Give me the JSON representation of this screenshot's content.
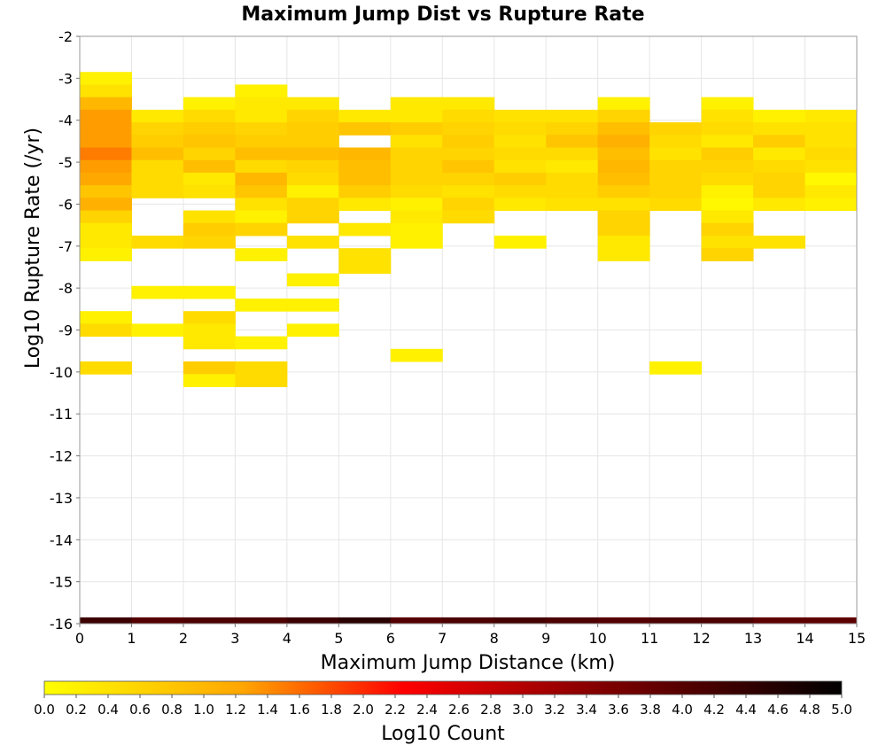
{
  "chart_data": {
    "type": "heatmap",
    "title": "Maximum Jump Dist vs Rupture Rate",
    "xlabel": "Maximum Jump Distance (km)",
    "ylabel": "Log10 Rupture Rate (/yr)",
    "colorbar_label": "Log10 Count",
    "xlim": [
      0,
      15
    ],
    "ylim": [
      -16,
      -2
    ],
    "x_ticks": [
      "0",
      "1",
      "2",
      "3",
      "4",
      "5",
      "6",
      "7",
      "8",
      "9",
      "10",
      "11",
      "12",
      "13",
      "14",
      "15"
    ],
    "y_ticks": [
      "-2",
      "-3",
      "-4",
      "-5",
      "-6",
      "-7",
      "-8",
      "-9",
      "-10",
      "-11",
      "-12",
      "-13",
      "-14",
      "-15",
      "-16"
    ],
    "colorbar_range": [
      0,
      5
    ],
    "colorbar_ticks": [
      "0.0",
      "0.2",
      "0.4",
      "0.6",
      "0.8",
      "1.0",
      "1.2",
      "1.4",
      "1.6",
      "1.8",
      "2.0",
      "2.2",
      "2.4",
      "2.6",
      "2.8",
      "3.0",
      "3.2",
      "3.4",
      "3.6",
      "3.8",
      "4.0",
      "4.2",
      "4.4",
      "4.6",
      "4.8",
      "5.0"
    ],
    "colormap": [
      "#ffff00",
      "#ffa500",
      "#ff0000",
      "#800000",
      "#000000"
    ],
    "bin_width_x": 1,
    "bin_height_y": 0.3,
    "grid": true,
    "cells": [
      [
        0,
        -16,
        4.3
      ],
      [
        1,
        -16,
        4.0
      ],
      [
        2,
        -16,
        4.1
      ],
      [
        3,
        -16,
        4.1
      ],
      [
        4,
        -16,
        4.3
      ],
      [
        5,
        -16,
        4.5
      ],
      [
        6,
        -16,
        4.0
      ],
      [
        7,
        -16,
        4.1
      ],
      [
        8,
        -16,
        4.2
      ],
      [
        9,
        -16,
        4.1
      ],
      [
        10,
        -16,
        4.0
      ],
      [
        11,
        -16,
        4.1
      ],
      [
        12,
        -16,
        4.1
      ],
      [
        13,
        -16,
        3.9
      ],
      [
        14,
        -16,
        3.9
      ],
      [
        0,
        -3.0,
        0.2
      ],
      [
        0,
        -3.3,
        0.4
      ],
      [
        0,
        -3.6,
        1.0
      ],
      [
        0,
        -3.9,
        1.3
      ],
      [
        0,
        -4.2,
        1.3
      ],
      [
        0,
        -4.5,
        1.3
      ],
      [
        0,
        -4.8,
        1.5
      ],
      [
        0,
        -5.1,
        1.3
      ],
      [
        0,
        -5.4,
        1.2
      ],
      [
        0,
        -5.7,
        0.8
      ],
      [
        0,
        -6.0,
        1.1
      ],
      [
        0,
        -6.3,
        0.6
      ],
      [
        0,
        -6.6,
        0.3
      ],
      [
        0,
        -6.9,
        0.3
      ],
      [
        0,
        -7.2,
        0.2
      ],
      [
        0,
        -8.7,
        0.2
      ],
      [
        0,
        -9.0,
        0.5
      ],
      [
        0,
        -9.9,
        0.5
      ],
      [
        1,
        -3.9,
        0.3
      ],
      [
        1,
        -4.2,
        0.6
      ],
      [
        1,
        -4.5,
        0.7
      ],
      [
        1,
        -4.8,
        0.9
      ],
      [
        1,
        -5.1,
        0.5
      ],
      [
        1,
        -5.4,
        0.5
      ],
      [
        1,
        -5.7,
        0.5
      ],
      [
        1,
        -6.9,
        0.5
      ],
      [
        1,
        -8.1,
        0.2
      ],
      [
        1,
        -9.0,
        0.2
      ],
      [
        2,
        -3.6,
        0.2
      ],
      [
        2,
        -3.9,
        0.5
      ],
      [
        2,
        -4.2,
        0.7
      ],
      [
        2,
        -4.5,
        0.8
      ],
      [
        2,
        -4.8,
        0.6
      ],
      [
        2,
        -5.1,
        0.9
      ],
      [
        2,
        -5.4,
        0.3
      ],
      [
        2,
        -5.7,
        0.4
      ],
      [
        2,
        -6.3,
        0.4
      ],
      [
        2,
        -6.6,
        0.7
      ],
      [
        2,
        -6.9,
        0.6
      ],
      [
        2,
        -8.1,
        0.2
      ],
      [
        2,
        -8.7,
        0.5
      ],
      [
        2,
        -9.0,
        0.3
      ],
      [
        2,
        -9.3,
        0.3
      ],
      [
        2,
        -9.9,
        0.7
      ],
      [
        2,
        -10.2,
        0.2
      ],
      [
        3,
        -3.3,
        0.2
      ],
      [
        3,
        -3.6,
        0.3
      ],
      [
        3,
        -3.9,
        0.3
      ],
      [
        3,
        -4.2,
        0.6
      ],
      [
        3,
        -4.5,
        0.7
      ],
      [
        3,
        -4.8,
        0.9
      ],
      [
        3,
        -5.1,
        0.5
      ],
      [
        3,
        -5.4,
        1.0
      ],
      [
        3,
        -5.7,
        0.8
      ],
      [
        3,
        -6.0,
        0.4
      ],
      [
        3,
        -6.3,
        0.2
      ],
      [
        3,
        -6.6,
        0.6
      ],
      [
        3,
        -7.2,
        0.2
      ],
      [
        3,
        -8.4,
        0.2
      ],
      [
        3,
        -9.3,
        0.2
      ],
      [
        3,
        -9.9,
        0.5
      ],
      [
        3,
        -10.2,
        0.5
      ],
      [
        4,
        -3.6,
        0.3
      ],
      [
        4,
        -3.9,
        0.6
      ],
      [
        4,
        -4.2,
        0.7
      ],
      [
        4,
        -4.5,
        0.7
      ],
      [
        4,
        -4.8,
        0.9
      ],
      [
        4,
        -5.1,
        0.6
      ],
      [
        4,
        -5.4,
        0.5
      ],
      [
        4,
        -5.7,
        0.2
      ],
      [
        4,
        -6.0,
        0.6
      ],
      [
        4,
        -6.3,
        0.6
      ],
      [
        4,
        -6.9,
        0.4
      ],
      [
        4,
        -7.8,
        0.2
      ],
      [
        4,
        -8.4,
        0.2
      ],
      [
        4,
        -9.0,
        0.2
      ],
      [
        5,
        -3.9,
        0.3
      ],
      [
        5,
        -4.2,
        0.8
      ],
      [
        5,
        -4.8,
        1.0
      ],
      [
        5,
        -5.1,
        0.9
      ],
      [
        5,
        -5.4,
        0.9
      ],
      [
        5,
        -5.7,
        0.7
      ],
      [
        5,
        -6.0,
        0.3
      ],
      [
        5,
        -6.6,
        0.3
      ],
      [
        5,
        -7.2,
        0.4
      ],
      [
        5,
        -7.5,
        0.4
      ],
      [
        6,
        -3.6,
        0.3
      ],
      [
        6,
        -3.9,
        0.3
      ],
      [
        6,
        -4.2,
        0.7
      ],
      [
        6,
        -4.5,
        0.4
      ],
      [
        6,
        -4.8,
        0.6
      ],
      [
        6,
        -5.1,
        0.6
      ],
      [
        6,
        -5.4,
        0.6
      ],
      [
        6,
        -5.7,
        0.5
      ],
      [
        6,
        -6.0,
        0.2
      ],
      [
        6,
        -6.3,
        0.3
      ],
      [
        6,
        -6.6,
        0.2
      ],
      [
        6,
        -6.9,
        0.2
      ],
      [
        6,
        -9.6,
        0.2
      ],
      [
        7,
        -3.6,
        0.3
      ],
      [
        7,
        -3.9,
        0.5
      ],
      [
        7,
        -4.2,
        0.6
      ],
      [
        7,
        -4.5,
        0.7
      ],
      [
        7,
        -4.8,
        0.6
      ],
      [
        7,
        -5.1,
        0.8
      ],
      [
        7,
        -5.4,
        0.6
      ],
      [
        7,
        -5.7,
        0.4
      ],
      [
        7,
        -6.0,
        0.6
      ],
      [
        7,
        -6.3,
        0.5
      ],
      [
        8,
        -3.9,
        0.4
      ],
      [
        8,
        -4.2,
        0.5
      ],
      [
        8,
        -4.5,
        0.4
      ],
      [
        8,
        -4.8,
        0.5
      ],
      [
        8,
        -5.1,
        0.4
      ],
      [
        8,
        -5.4,
        0.7
      ],
      [
        8,
        -5.7,
        0.5
      ],
      [
        8,
        -6.0,
        0.3
      ],
      [
        8,
        -6.9,
        0.2
      ],
      [
        9,
        -3.9,
        0.4
      ],
      [
        9,
        -4.2,
        0.6
      ],
      [
        9,
        -4.5,
        0.8
      ],
      [
        9,
        -4.8,
        0.5
      ],
      [
        9,
        -5.1,
        0.3
      ],
      [
        9,
        -5.4,
        0.5
      ],
      [
        9,
        -5.7,
        0.5
      ],
      [
        9,
        -6.0,
        0.4
      ],
      [
        10,
        -3.6,
        0.2
      ],
      [
        10,
        -3.9,
        0.6
      ],
      [
        10,
        -4.2,
        0.9
      ],
      [
        10,
        -4.5,
        1.1
      ],
      [
        10,
        -4.8,
        0.9
      ],
      [
        10,
        -5.1,
        1.0
      ],
      [
        10,
        -5.4,
        0.9
      ],
      [
        10,
        -5.7,
        0.7
      ],
      [
        10,
        -6.0,
        0.4
      ],
      [
        10,
        -6.3,
        0.6
      ],
      [
        10,
        -6.6,
        0.6
      ],
      [
        10,
        -6.9,
        0.3
      ],
      [
        10,
        -7.2,
        0.3
      ],
      [
        11,
        -4.2,
        0.6
      ],
      [
        11,
        -4.5,
        0.5
      ],
      [
        11,
        -4.8,
        0.4
      ],
      [
        11,
        -5.1,
        0.6
      ],
      [
        11,
        -5.4,
        0.6
      ],
      [
        11,
        -5.7,
        0.6
      ],
      [
        11,
        -6.0,
        0.5
      ],
      [
        11,
        -9.9,
        0.2
      ],
      [
        12,
        -3.6,
        0.2
      ],
      [
        12,
        -3.9,
        0.4
      ],
      [
        12,
        -4.2,
        0.5
      ],
      [
        12,
        -4.5,
        0.3
      ],
      [
        12,
        -4.8,
        0.7
      ],
      [
        12,
        -5.1,
        0.6
      ],
      [
        12,
        -5.4,
        0.5
      ],
      [
        12,
        -5.7,
        0.2
      ],
      [
        12,
        -6.0,
        0.1
      ],
      [
        12,
        -6.3,
        0.3
      ],
      [
        12,
        -6.6,
        0.6
      ],
      [
        12,
        -6.9,
        0.4
      ],
      [
        12,
        -7.2,
        0.6
      ],
      [
        13,
        -3.9,
        0.2
      ],
      [
        13,
        -4.2,
        0.4
      ],
      [
        13,
        -4.5,
        0.7
      ],
      [
        13,
        -4.8,
        0.3
      ],
      [
        13,
        -5.1,
        0.5
      ],
      [
        13,
        -5.4,
        0.6
      ],
      [
        13,
        -5.7,
        0.6
      ],
      [
        13,
        -6.0,
        0.3
      ],
      [
        13,
        -6.9,
        0.4
      ],
      [
        14,
        -3.9,
        0.3
      ],
      [
        14,
        -4.2,
        0.4
      ],
      [
        14,
        -4.5,
        0.4
      ],
      [
        14,
        -4.8,
        0.5
      ],
      [
        14,
        -5.1,
        0.4
      ],
      [
        14,
        -5.4,
        0.1
      ],
      [
        14,
        -5.7,
        0.3
      ],
      [
        14,
        -6.0,
        0.2
      ]
    ]
  }
}
